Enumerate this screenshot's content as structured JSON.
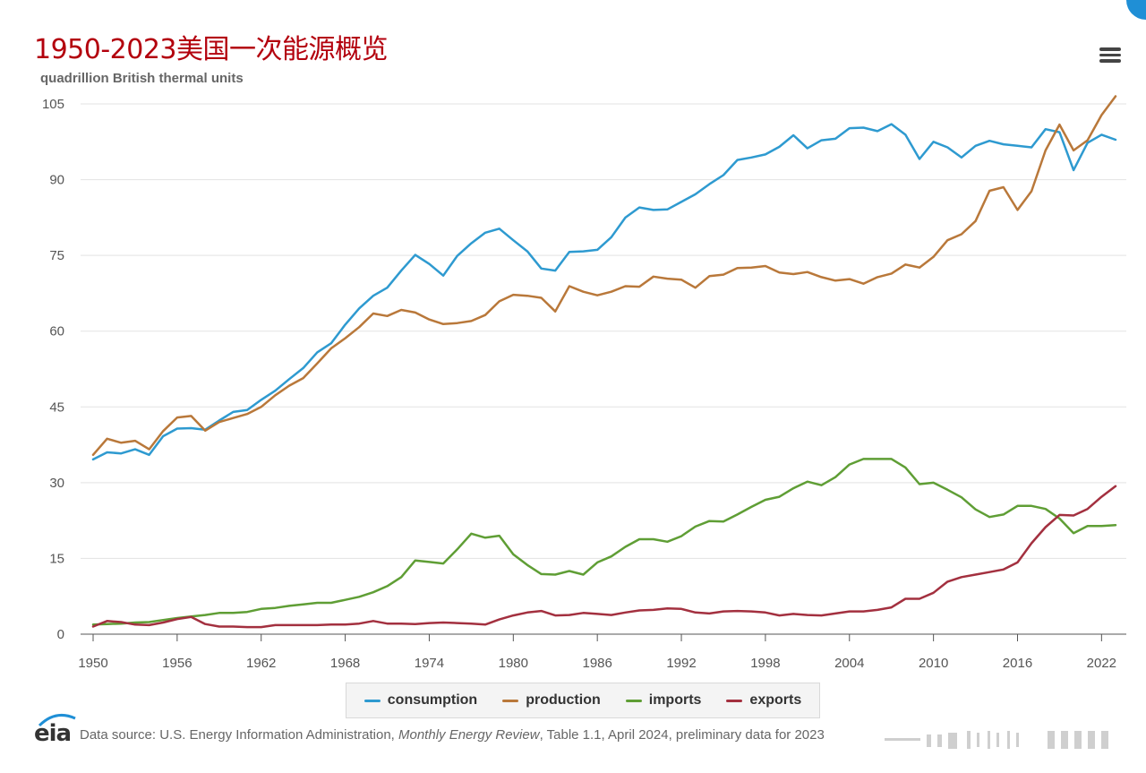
{
  "title": "1950-2023美国一次能源概览",
  "units": "quadrillion British thermal units",
  "colors": {
    "consumption": "#2e9ad0",
    "production": "#b9783a",
    "imports": "#5f9e35",
    "exports": "#a3303f",
    "grid": "#e3e3e3",
    "accent": "#1f8fd6"
  },
  "legend": [
    {
      "key": "consumption",
      "label": "consumption"
    },
    {
      "key": "production",
      "label": "production"
    },
    {
      "key": "imports",
      "label": "imports"
    },
    {
      "key": "exports",
      "label": "exports"
    }
  ],
  "source": {
    "prefix": "Data source: U.S. Energy Information Administration, ",
    "publication": "Monthly Energy Review",
    "suffix": ", Table 1.1, April 2024, preliminary data for 2023"
  },
  "logo_text": "eia",
  "menu_icon": "hamburger-menu-icon",
  "chart_data": {
    "type": "line",
    "title": "1950-2023美国一次能源概览",
    "ylabel": "quadrillion British thermal units",
    "xlim": [
      1950,
      2023
    ],
    "ylim": [
      0,
      105
    ],
    "x_ticks": [
      1950,
      1956,
      1962,
      1968,
      1974,
      1980,
      1986,
      1992,
      1998,
      2004,
      2010,
      2016,
      2022
    ],
    "y_ticks": [
      0,
      15,
      30,
      45,
      60,
      75,
      90,
      105
    ],
    "grid": "horizontal",
    "legend_position": "bottom",
    "x_start": 1950,
    "series": [
      {
        "name": "consumption",
        "values": [
          34.6,
          36.0,
          35.8,
          36.6,
          35.5,
          39.2,
          40.7,
          40.8,
          40.5,
          42.3,
          44.0,
          44.4,
          46.4,
          48.2,
          50.5,
          52.7,
          55.8,
          57.6,
          61.3,
          64.5,
          67.0,
          68.6,
          72.0,
          75.1,
          73.3,
          71.0,
          74.9,
          77.4,
          79.5,
          80.3,
          78.0,
          75.8,
          72.4,
          72.0,
          75.7,
          75.8,
          76.1,
          78.6,
          82.5,
          84.5,
          84.0,
          84.1,
          85.6,
          87.1,
          89.1,
          90.9,
          93.9,
          94.4,
          95.0,
          96.5,
          98.8,
          96.2,
          97.8,
          98.1,
          100.2,
          100.3,
          99.6,
          101.0,
          98.9,
          94.1,
          97.5,
          96.4,
          94.4,
          96.7,
          97.7,
          97.0,
          96.7,
          96.4,
          100.0,
          99.4,
          91.9,
          97.3,
          98.9,
          97.9
        ]
      },
      {
        "name": "production",
        "values": [
          35.5,
          38.7,
          37.9,
          38.3,
          36.6,
          40.2,
          42.9,
          43.2,
          40.3,
          42.0,
          42.8,
          43.6,
          45.0,
          47.3,
          49.2,
          50.7,
          53.6,
          56.6,
          58.6,
          60.8,
          63.5,
          63.0,
          64.2,
          63.7,
          62.3,
          61.4,
          61.6,
          62.0,
          63.2,
          65.9,
          67.2,
          67.0,
          66.6,
          63.9,
          68.9,
          67.8,
          67.1,
          67.8,
          68.9,
          68.8,
          70.8,
          70.4,
          70.2,
          68.6,
          70.9,
          71.2,
          72.5,
          72.6,
          72.9,
          71.6,
          71.3,
          71.7,
          70.7,
          70.0,
          70.3,
          69.4,
          70.7,
          71.4,
          73.2,
          72.6,
          74.7,
          78.0,
          79.2,
          81.8,
          87.8,
          88.5,
          84.0,
          87.7,
          95.8,
          100.9,
          95.8,
          97.8,
          102.8,
          106.5
        ]
      },
      {
        "name": "imports",
        "values": [
          1.9,
          2.0,
          2.1,
          2.3,
          2.4,
          2.8,
          3.2,
          3.5,
          3.8,
          4.2,
          4.2,
          4.4,
          5.0,
          5.2,
          5.6,
          5.9,
          6.2,
          6.2,
          6.8,
          7.4,
          8.3,
          9.5,
          11.3,
          14.6,
          14.3,
          14.0,
          16.8,
          19.9,
          19.1,
          19.5,
          15.8,
          13.7,
          11.9,
          11.8,
          12.5,
          11.8,
          14.2,
          15.4,
          17.3,
          18.8,
          18.8,
          18.3,
          19.4,
          21.3,
          22.4,
          22.3,
          23.7,
          25.2,
          26.6,
          27.2,
          28.9,
          30.2,
          29.5,
          31.1,
          33.6,
          34.7,
          34.7,
          34.7,
          33.0,
          29.7,
          30.0,
          28.6,
          27.1,
          24.7,
          23.2,
          23.7,
          25.4,
          25.4,
          24.8,
          22.9,
          20.0,
          21.4,
          21.4,
          21.6
        ]
      },
      {
        "name": "exports",
        "values": [
          1.5,
          2.6,
          2.4,
          1.9,
          1.8,
          2.3,
          3.0,
          3.4,
          2.0,
          1.5,
          1.5,
          1.4,
          1.4,
          1.8,
          1.8,
          1.8,
          1.8,
          1.9,
          1.9,
          2.1,
          2.6,
          2.1,
          2.1,
          2.0,
          2.2,
          2.3,
          2.2,
          2.1,
          1.9,
          2.9,
          3.7,
          4.3,
          4.6,
          3.7,
          3.8,
          4.2,
          4.0,
          3.8,
          4.3,
          4.7,
          4.8,
          5.1,
          5.0,
          4.3,
          4.1,
          4.5,
          4.6,
          4.5,
          4.3,
          3.7,
          4.0,
          3.8,
          3.7,
          4.1,
          4.5,
          4.5,
          4.8,
          5.3,
          7.0,
          7.0,
          8.2,
          10.4,
          11.3,
          11.8,
          12.3,
          12.8,
          14.2,
          18.0,
          21.2,
          23.6,
          23.5,
          24.8,
          27.2,
          29.3
        ]
      }
    ]
  }
}
